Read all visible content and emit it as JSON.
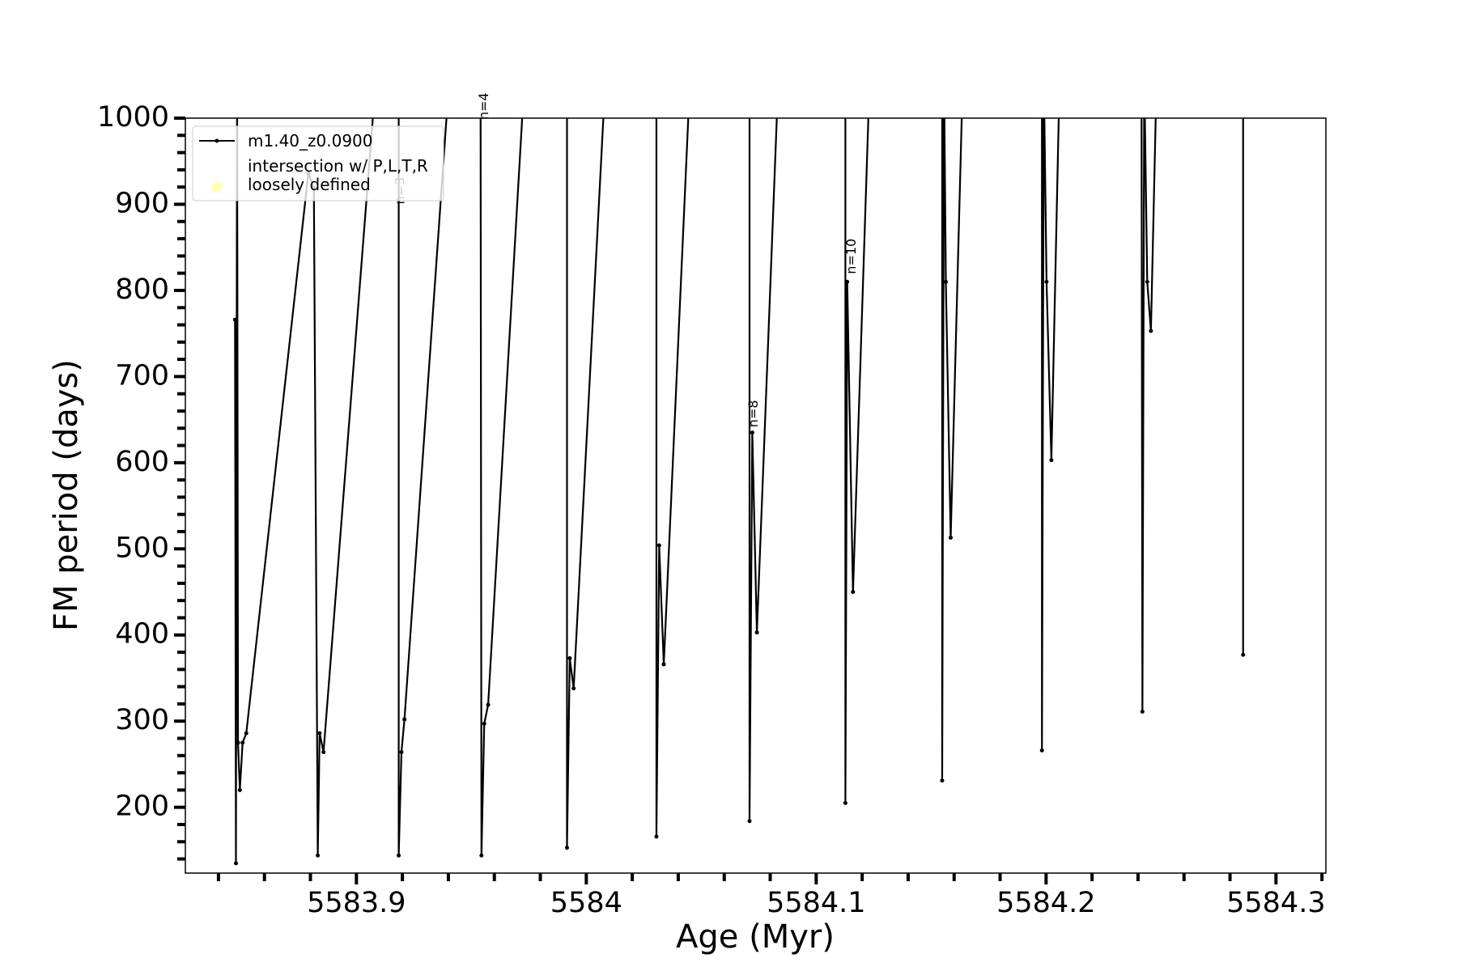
{
  "chart_data": {
    "type": "line",
    "xlabel": "Age (Myr)",
    "ylabel": "FM period (days)",
    "xlim": [
      5583.8256,
      5584.3217
    ],
    "ylim": [
      123.6,
      1000
    ],
    "xticks": [
      5583.9,
      5584.0,
      5584.1,
      5584.2,
      5584.3
    ],
    "xminorticks": [
      5583.84,
      5583.86,
      5583.88,
      5583.92,
      5583.94,
      5583.96,
      5583.98,
      5584.02,
      5584.04,
      5584.06,
      5584.08,
      5584.12,
      5584.14,
      5584.16,
      5584.18,
      5584.22,
      5584.24,
      5584.26,
      5584.28,
      5584.32
    ],
    "yticks": [
      200,
      300,
      400,
      500,
      600,
      700,
      800,
      900,
      1000
    ],
    "yminorticks": [
      140,
      160,
      180,
      220,
      240,
      260,
      280,
      320,
      340,
      360,
      380,
      420,
      440,
      460,
      480,
      520,
      540,
      560,
      580,
      620,
      640,
      660,
      680,
      720,
      740,
      760,
      780,
      820,
      840,
      860,
      880,
      920,
      940,
      960,
      980
    ],
    "grid": false,
    "legend": "upper left",
    "series": [
      {
        "name": "m1.40_z0.0900",
        "color": "#000000",
        "x": [
          5583.8472,
          5583.8476,
          5583.8481,
          5583.8485,
          5583.8493,
          5583.8505,
          5583.8521,
          5583.8791,
          5583.8815,
          5583.8832,
          5583.884,
          5583.8857,
          5583.9086,
          5583.9184,
          5583.9184,
          5583.9196,
          5583.9209,
          5583.9405,
          5583.954,
          5583.9544,
          5583.9556,
          5583.9573,
          5583.9732,
          5583.9916,
          5583.9916,
          5583.9928,
          5583.9945,
          5584.0084,
          5584.0305,
          5584.0305,
          5584.0317,
          5584.0337,
          5584.0452,
          5584.071,
          5584.071,
          5584.0722,
          5584.0742,
          5584.0836,
          5584.1127,
          5584.1127,
          5584.1135,
          5584.116,
          5584.1233,
          5584.1548,
          5584.1548,
          5584.1556,
          5584.1564,
          5584.1585,
          5584.1638,
          5584.1982,
          5584.1982,
          5584.199,
          5584.2002,
          5584.2023,
          5584.2059,
          5584.2415,
          5584.2419,
          5584.2427,
          5584.244,
          5584.2456,
          5584.2481,
          5584.2857,
          5584.2857
        ],
        "values": [
          766,
          135,
          1050,
          275,
          220,
          275,
          286,
          936,
          919,
          144,
          286,
          264,
          1050,
          1050,
          144,
          264,
          302,
          1050,
          1050,
          144,
          297,
          319,
          1050,
          1050,
          153,
          373,
          338,
          1050,
          1050,
          166,
          504,
          366,
          1050,
          1050,
          184,
          635,
          403,
          1050,
          1050,
          205,
          810,
          450,
          1050,
          1050,
          231,
          1050,
          810,
          513,
          1050,
          1050,
          266,
          1050,
          810,
          603,
          1050,
          1050,
          311,
          1050,
          810,
          753,
          1050,
          1050,
          377
        ]
      },
      {
        "name": "intersection w/ P,L,T,R\nloosely defined",
        "color": "#ffff99",
        "marker": "circle",
        "x": [],
        "values": []
      }
    ],
    "annotations": [
      {
        "text": "n=3",
        "x": 5583.9209,
        "y": 900
      },
      {
        "text": "n=4",
        "x": 5583.9573,
        "y": 998
      },
      {
        "text": "n=8",
        "x": 5584.0746,
        "y": 641
      },
      {
        "text": "n=10",
        "x": 5584.1172,
        "y": 819
      }
    ]
  }
}
